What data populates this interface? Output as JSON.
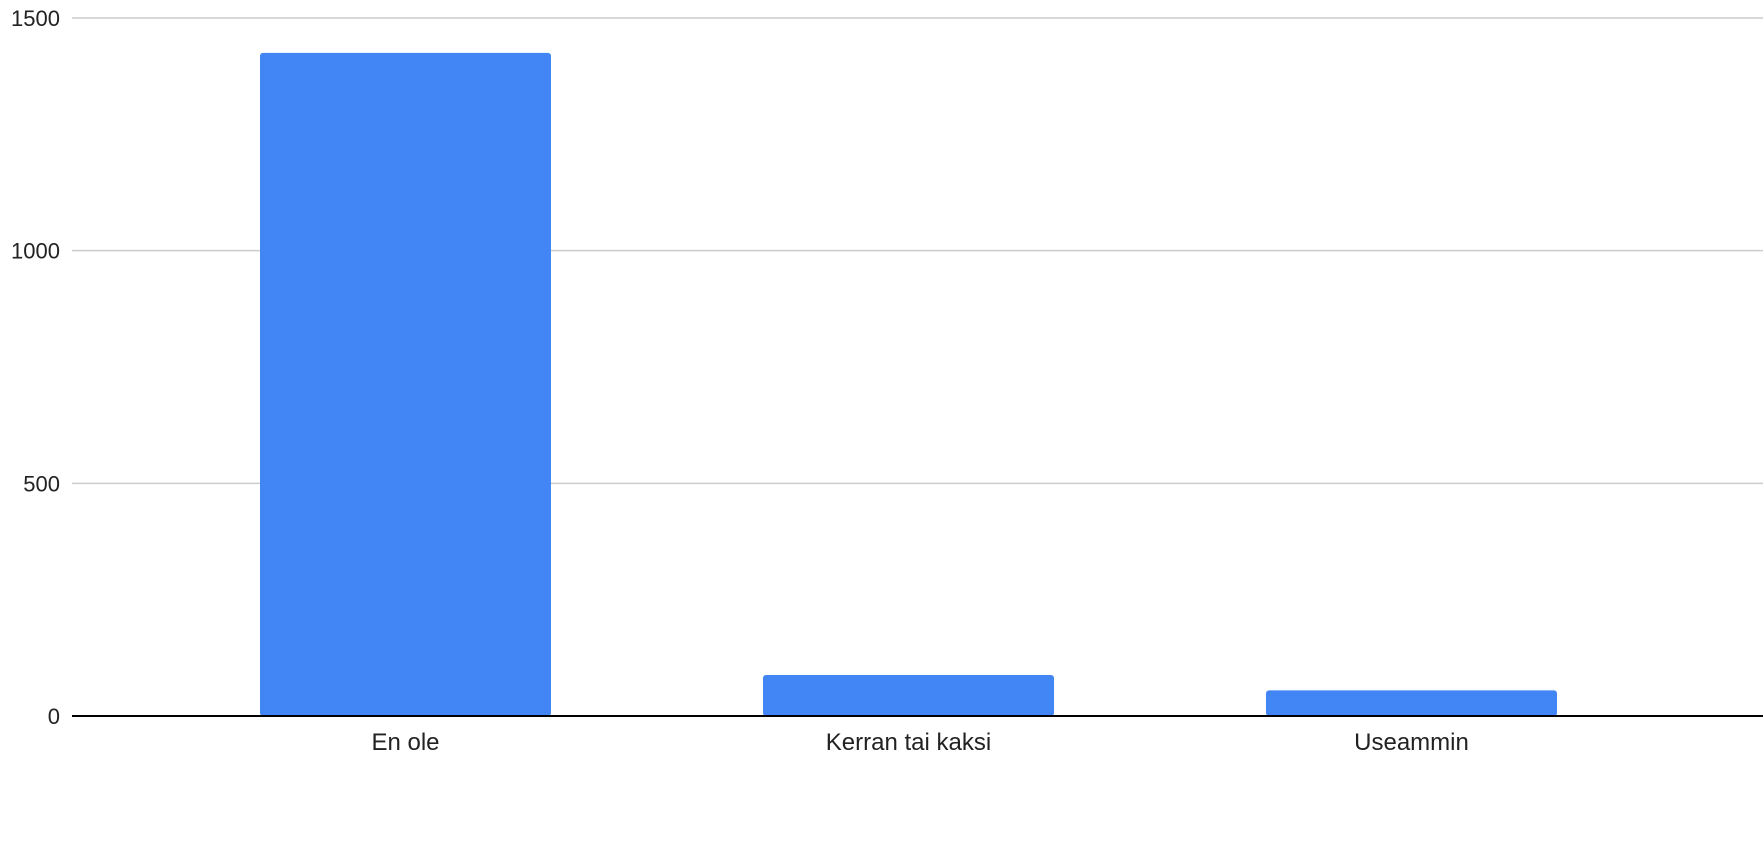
{
  "chart_data": {
    "type": "bar",
    "categories": [
      "En ole",
      "Kerran tai kaksi",
      "Useammin"
    ],
    "values": [
      1425,
      88,
      55
    ],
    "title": "",
    "xlabel": "",
    "ylabel": "",
    "ylim": [
      0,
      1500
    ],
    "yticks": [
      0,
      500,
      1000,
      1500
    ],
    "grid": true,
    "legend": "none",
    "bar_color": "#4285f4"
  }
}
